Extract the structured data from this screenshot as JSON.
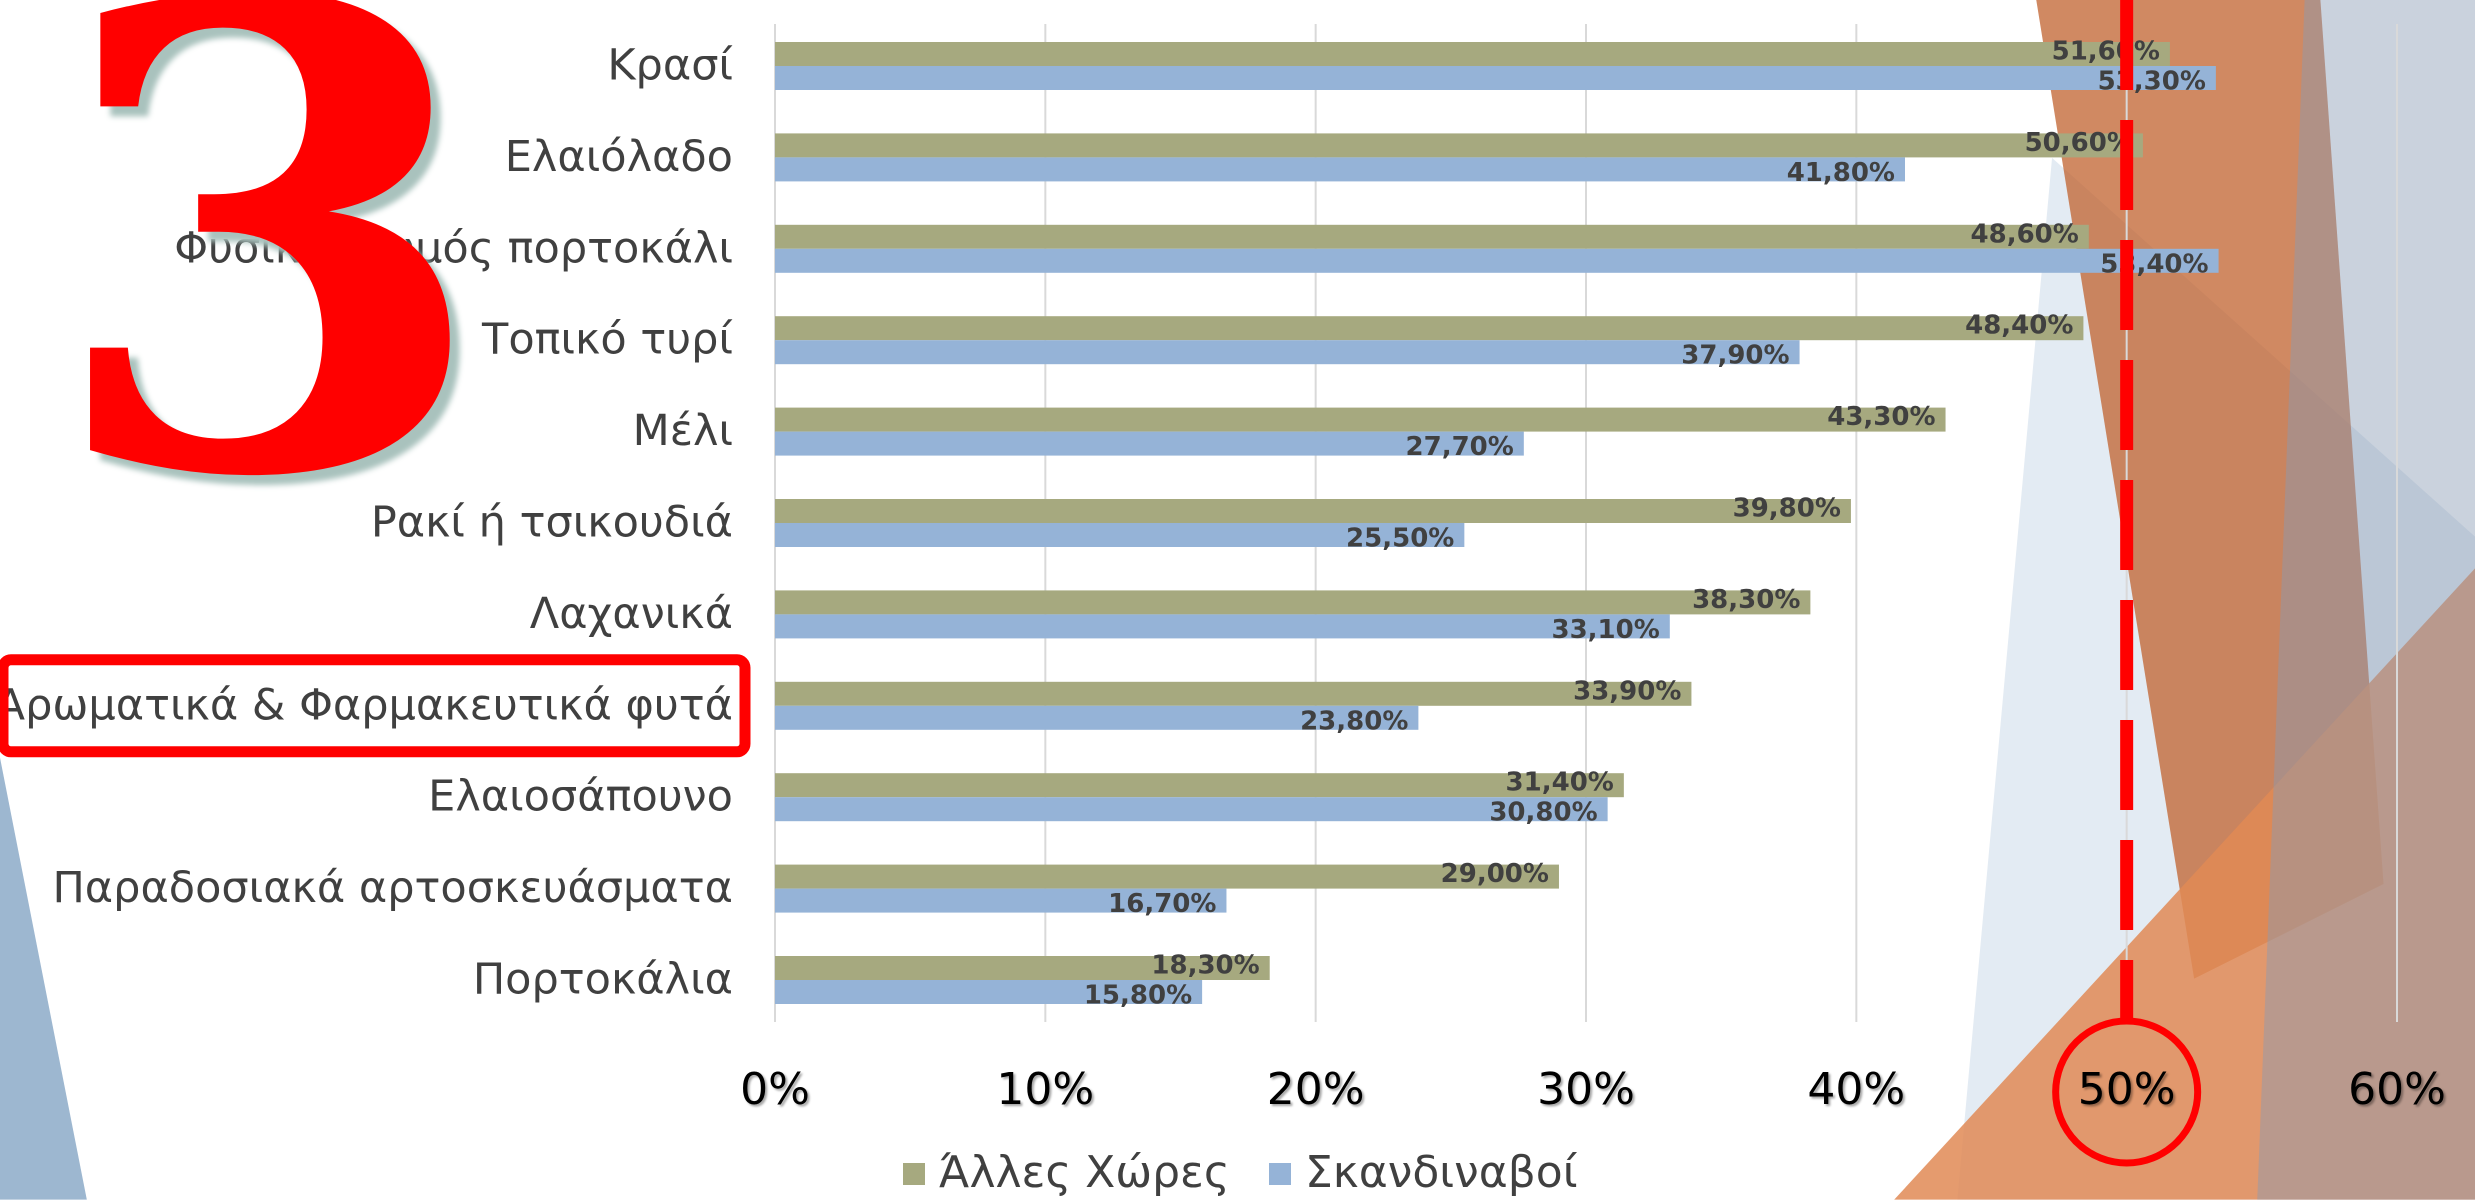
{
  "chart_data": {
    "type": "hbar",
    "annotation": "3",
    "categories": [
      "Κρασί",
      "Ελαιόλαδο",
      "Φυσικός χυμός πορτοκάλι",
      "Τοπικό τυρί",
      "Μέλι",
      "Ρακί ή τσικουδιά",
      "Λαχανικά",
      "Αρωματικά & Φαρμακευτικά φυτά",
      "Ελαιοσάπουνο",
      "Παραδοσιακά αρτοσκευάσματα",
      "Πορτοκάλια"
    ],
    "series": [
      {
        "name": "Άλλες Χώρες",
        "color": "#a6a97f",
        "values": [
          51.6,
          50.6,
          48.6,
          48.4,
          43.3,
          39.8,
          38.3,
          33.9,
          31.4,
          29.0,
          18.3
        ],
        "value_labels": [
          "51,60%",
          "50,60%",
          "48,60%",
          "48,40%",
          "43,30%",
          "39,80%",
          "38,30%",
          "33,90%",
          "31,40%",
          "29,00%",
          "18,30%"
        ]
      },
      {
        "name": "Σκανδιναβοί",
        "color": "#95b3d7",
        "values": [
          53.3,
          41.8,
          53.4,
          37.9,
          27.7,
          25.5,
          33.1,
          23.8,
          30.8,
          16.7,
          15.8
        ],
        "value_labels": [
          "53,30%",
          "41,80%",
          "53,40%",
          "37,90%",
          "27,70%",
          "25,50%",
          "33,10%",
          "23,80%",
          "30,80%",
          "16,70%",
          "15,80%"
        ]
      }
    ],
    "xlim": [
      0,
      60
    ],
    "xticks": [
      {
        "value": 0,
        "label": "0%"
      },
      {
        "value": 10,
        "label": "10%"
      },
      {
        "value": 20,
        "label": "20%"
      },
      {
        "value": 30,
        "label": "30%"
      },
      {
        "value": 40,
        "label": "40%"
      },
      {
        "value": 50,
        "label": "50%"
      },
      {
        "value": 60,
        "label": "60%"
      }
    ],
    "grid": true,
    "reference_line": 50,
    "highlight_index": 7,
    "legend": "bottom"
  }
}
